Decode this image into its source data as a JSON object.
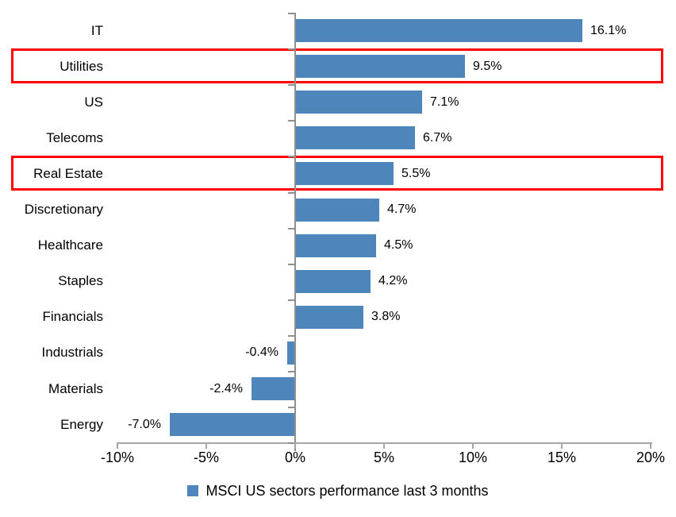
{
  "chart_data": {
    "type": "bar",
    "orientation": "horizontal",
    "title": "",
    "categories": [
      "IT",
      "Utilities",
      "US",
      "Telecoms",
      "Real Estate",
      "Discretionary",
      "Healthcare",
      "Staples",
      "Financials",
      "Industrials",
      "Materials",
      "Energy"
    ],
    "values": [
      16.1,
      9.5,
      7.1,
      6.7,
      5.5,
      4.7,
      4.5,
      4.2,
      3.8,
      -0.4,
      -2.4,
      -7.0
    ],
    "data_labels": [
      "16.1%",
      "9.5%",
      "7.1%",
      "6.7%",
      "5.5%",
      "4.7%",
      "4.5%",
      "4.2%",
      "3.8%",
      "-0.4%",
      "-2.4%",
      "-7.0%"
    ],
    "xlabel": "",
    "ylabel": "",
    "xlim": [
      -10,
      20
    ],
    "x_ticks": {
      "labels": [
        "-10%",
        "-5%",
        "0%",
        "5%",
        "10%",
        "15%",
        "20%"
      ],
      "values": [
        -10,
        -5,
        0,
        5,
        10,
        15,
        20
      ]
    },
    "grid": "off",
    "legend": {
      "label": "MSCI US sectors performance last 3 months",
      "position": "bottom-center"
    },
    "highlighted_categories": [
      "Utilities",
      "Real Estate"
    ],
    "colors": {
      "bar": "#4E86BC",
      "highlight_box": "#FF0000",
      "y_axis_line": "#8F8F8F",
      "x_axis_line": "#A6A6A6",
      "text": "#000000"
    }
  }
}
